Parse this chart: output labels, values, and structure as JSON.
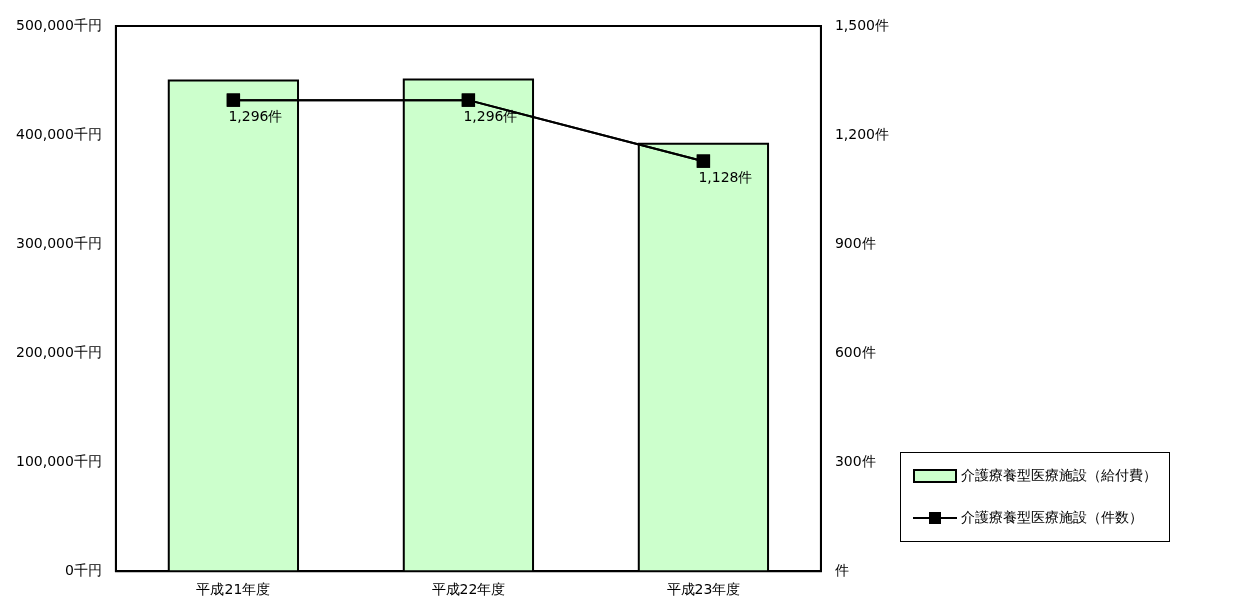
{
  "chart_data": {
    "type": "bar",
    "categories": [
      "平成21年度",
      "平成22年度",
      "平成23年度"
    ],
    "series": [
      {
        "name": "介護療養型医療施設（給付費）",
        "type": "bar",
        "color": "#ccffcc",
        "values": [
          450000,
          451000,
          392000
        ]
      },
      {
        "name": "介護療養型医療施設（件数）",
        "type": "line",
        "axis": "y2",
        "color": "#000000",
        "marker": "square",
        "values": [
          1296,
          1296,
          1128
        ],
        "value_labels": [
          "1,296件",
          "1,296件",
          "1,128件"
        ]
      }
    ],
    "ylim": [
      0,
      500000
    ],
    "yticks": [
      {
        "value": 0,
        "label": "0千円"
      },
      {
        "value": 100000,
        "label": "100,000千円"
      },
      {
        "value": 200000,
        "label": "200,000千円"
      },
      {
        "value": 300000,
        "label": "300,000千円"
      },
      {
        "value": 400000,
        "label": "400,000千円"
      },
      {
        "value": 500000,
        "label": "500,000千円"
      }
    ],
    "y2lim": [
      0,
      1500
    ],
    "y2ticks": [
      {
        "value": 0,
        "label": "件"
      },
      {
        "value": 300,
        "label": "300件"
      },
      {
        "value": 600,
        "label": "600件"
      },
      {
        "value": 900,
        "label": "900件"
      },
      {
        "value": 1200,
        "label": "1,200件"
      },
      {
        "value": 1500,
        "label": "1,500件"
      }
    ],
    "grid": false,
    "legend": "right"
  }
}
